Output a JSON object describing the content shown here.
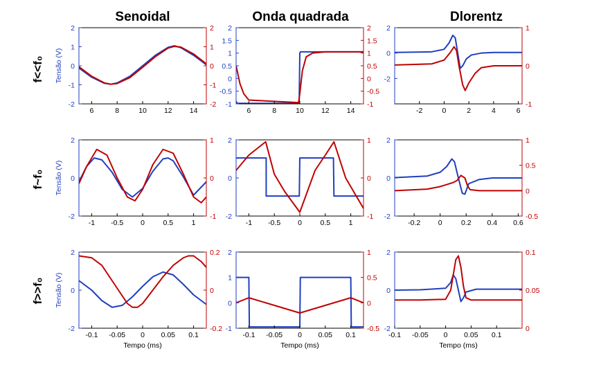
{
  "figure": {
    "columns": [
      "Senoidal",
      "Onda quadrada",
      "Dlorentz"
    ],
    "rows": [
      "f<<f₀",
      "f~f₀",
      "f>>f₀"
    ],
    "ylabel_left": "Tensão (V)",
    "xlabel": "Tempo (ms)",
    "colors": {
      "left": "#1f3fbf",
      "right": "#bf0000",
      "frame": "#000000"
    }
  },
  "chart_data": [
    {
      "type": "line",
      "row": 0,
      "col": 0,
      "title": "Senoidal",
      "ylabel": "Tensão (V)",
      "xlabel": "",
      "xlim": [
        5,
        15
      ],
      "ylim_left": [
        -2,
        2
      ],
      "ylim_right": [
        -2,
        2
      ],
      "xticks": [
        6,
        8,
        10,
        12,
        14
      ],
      "yticks_left": [
        -2,
        -1,
        0,
        1,
        2
      ],
      "yticks_right": [
        -2,
        -1,
        0,
        1,
        2
      ],
      "series": [
        {
          "axis": "left",
          "color": "#1f3fbf",
          "x": [
            5,
            6,
            7,
            7.5,
            8,
            9,
            10,
            11,
            12,
            12.5,
            13,
            14,
            15
          ],
          "y": [
            -0.12,
            -0.6,
            -0.92,
            -0.97,
            -0.9,
            -0.55,
            0,
            0.55,
            0.97,
            1.05,
            0.95,
            0.55,
            0.05
          ]
        },
        {
          "axis": "right",
          "color": "#bf0000",
          "x": [
            5,
            6,
            7,
            7.5,
            8,
            9,
            10,
            11,
            12,
            12.5,
            13,
            14,
            15
          ],
          "y": [
            -0.05,
            -0.55,
            -0.9,
            -0.97,
            -0.93,
            -0.62,
            -0.08,
            0.48,
            0.93,
            1.02,
            0.98,
            0.62,
            0.1
          ]
        }
      ]
    },
    {
      "type": "line",
      "row": 0,
      "col": 1,
      "title": "Onda quadrada",
      "ylabel": "",
      "xlabel": "",
      "xlim": [
        5,
        15
      ],
      "ylim_left": [
        -1,
        2
      ],
      "ylim_right": [
        -1,
        2
      ],
      "xticks": [
        6,
        8,
        10,
        12,
        14
      ],
      "yticks_left": [
        -1,
        -0.5,
        0,
        0.5,
        1,
        1.5,
        2
      ],
      "yticks_right": [
        -1,
        -0.5,
        0,
        0.5,
        1,
        1.5,
        2
      ],
      "series": [
        {
          "axis": "left",
          "color": "#1f3fbf",
          "x": [
            5,
            5.05,
            5.1,
            9.95,
            10,
            10.05,
            10.3,
            15
          ],
          "y": [
            -0.9,
            -0.95,
            -0.98,
            -0.98,
            1.0,
            1.05,
            1.05,
            1.05
          ]
        },
        {
          "axis": "right",
          "color": "#bf0000",
          "x": [
            5,
            5.3,
            5.6,
            6,
            9.9,
            10,
            10.2,
            10.5,
            11,
            12,
            15
          ],
          "y": [
            0.5,
            -0.2,
            -0.6,
            -0.85,
            -0.95,
            -0.6,
            0.3,
            0.85,
            1.0,
            1.05,
            1.05
          ]
        }
      ]
    },
    {
      "type": "line",
      "row": 0,
      "col": 2,
      "title": "Dlorentz",
      "ylabel": "",
      "xlabel": "",
      "xlim": [
        -4,
        6.3
      ],
      "ylim_left": [
        -4,
        2
      ],
      "ylim_right": [
        -1,
        1
      ],
      "xticks": [
        -2,
        0,
        2,
        4,
        6
      ],
      "yticks_left": [
        -2,
        0,
        2
      ],
      "yticks_right": [
        -1,
        0,
        1
      ],
      "series": [
        {
          "axis": "left",
          "color": "#1f3fbf",
          "x": [
            -4,
            -1,
            0,
            0.4,
            0.7,
            0.9,
            1.1,
            1.3,
            1.5,
            1.8,
            2.2,
            3,
            4,
            6.3
          ],
          "y": [
            0.05,
            0.1,
            0.3,
            0.8,
            1.4,
            1.2,
            0.0,
            -1.2,
            -1.0,
            -0.45,
            -0.15,
            0,
            0.05,
            0.05
          ]
        },
        {
          "axis": "right",
          "color": "#bf0000",
          "x": [
            -4,
            -1,
            0,
            0.5,
            0.8,
            1.0,
            1.2,
            1.5,
            1.7,
            2.0,
            2.5,
            3,
            4,
            6.3
          ],
          "y": [
            0.02,
            0.05,
            0.15,
            0.35,
            0.5,
            0.4,
            0.0,
            -0.5,
            -0.65,
            -0.45,
            -0.2,
            -0.05,
            0,
            0
          ]
        }
      ]
    },
    {
      "type": "line",
      "row": 1,
      "col": 0,
      "title": "",
      "ylabel": "Tensão (V)",
      "xlabel": "",
      "xlim": [
        -1.25,
        1.25
      ],
      "ylim_left": [
        -2,
        2
      ],
      "ylim_right": [
        -1,
        1
      ],
      "xticks": [
        -1,
        -0.5,
        0,
        0.5,
        1
      ],
      "yticks_left": [
        -2,
        0,
        2
      ],
      "yticks_right": [
        -1,
        0,
        1
      ],
      "series": [
        {
          "axis": "left",
          "color": "#1f3fbf",
          "x": [
            -1.25,
            -1.1,
            -0.95,
            -0.8,
            -0.6,
            -0.4,
            -0.2,
            0,
            0.2,
            0.4,
            0.5,
            0.6,
            0.8,
            1.0,
            1.25
          ],
          "y": [
            -0.2,
            0.6,
            1.05,
            0.95,
            0.3,
            -0.6,
            -1.0,
            -0.55,
            0.35,
            1.0,
            1.05,
            0.9,
            0.05,
            -0.9,
            -0.2
          ]
        },
        {
          "axis": "right",
          "color": "#bf0000",
          "x": [
            -1.25,
            -1.1,
            -0.9,
            -0.7,
            -0.5,
            -0.3,
            -0.15,
            0,
            0.2,
            0.4,
            0.6,
            0.8,
            1.0,
            1.15,
            1.25
          ],
          "y": [
            -0.15,
            0.3,
            0.75,
            0.6,
            0.0,
            -0.5,
            -0.6,
            -0.3,
            0.35,
            0.75,
            0.65,
            0.1,
            -0.5,
            -0.65,
            -0.5
          ]
        }
      ]
    },
    {
      "type": "line",
      "row": 1,
      "col": 1,
      "title": "",
      "ylabel": "",
      "xlabel": "",
      "xlim": [
        -1.25,
        1.25
      ],
      "ylim_left": [
        -2,
        2
      ],
      "ylim_right": [
        -1,
        1
      ],
      "xticks": [
        -1,
        -0.5,
        0,
        0.5,
        1
      ],
      "yticks_left": [
        -2,
        0,
        2
      ],
      "yticks_right": [
        -1,
        0,
        1
      ],
      "series": [
        {
          "axis": "left",
          "color": "#1f3fbf",
          "x": [
            -1.25,
            -0.66,
            -0.66,
            -0.01,
            0,
            0.66,
            0.67,
            1.25
          ],
          "y": [
            1.05,
            1.05,
            -0.95,
            -0.95,
            1.05,
            1.05,
            -0.95,
            -0.95
          ]
        },
        {
          "axis": "right",
          "color": "#bf0000",
          "x": [
            -1.25,
            -1.0,
            -0.67,
            -0.5,
            -0.3,
            0,
            0.3,
            0.5,
            0.67,
            0.9,
            1.25
          ],
          "y": [
            0.2,
            0.6,
            0.95,
            0.1,
            -0.35,
            -0.9,
            0.2,
            0.6,
            0.95,
            0.0,
            -0.8
          ]
        }
      ]
    },
    {
      "type": "line",
      "row": 1,
      "col": 2,
      "title": "",
      "ylabel": "",
      "xlabel": "",
      "xlim": [
        -0.35,
        0.63
      ],
      "ylim_left": [
        -2,
        2
      ],
      "ylim_right": [
        -0.5,
        1
      ],
      "xticks": [
        -0.2,
        0,
        0.2,
        0.4,
        0.6
      ],
      "yticks_left": [
        -2,
        0,
        2
      ],
      "yticks_right": [
        -0.5,
        0,
        0.5,
        1
      ],
      "series": [
        {
          "axis": "left",
          "color": "#1f3fbf",
          "x": [
            -0.35,
            -0.1,
            0,
            0.05,
            0.09,
            0.11,
            0.14,
            0.17,
            0.19,
            0.22,
            0.3,
            0.4,
            0.63
          ],
          "y": [
            0.02,
            0.1,
            0.3,
            0.6,
            1.0,
            0.85,
            0.0,
            -0.8,
            -0.85,
            -0.3,
            -0.08,
            0,
            0
          ]
        },
        {
          "axis": "right",
          "color": "#bf0000",
          "x": [
            -0.35,
            -0.1,
            0,
            0.05,
            0.1,
            0.13,
            0.16,
            0.19,
            0.21,
            0.23,
            0.3,
            0.4,
            0.63
          ],
          "y": [
            0,
            0.03,
            0.08,
            0.12,
            0.16,
            0.2,
            0.3,
            0.25,
            0.1,
            0.02,
            0,
            0,
            0
          ]
        }
      ]
    },
    {
      "type": "line",
      "row": 2,
      "col": 0,
      "title": "",
      "ylabel": "Tensão (V)",
      "xlabel": "Tempo (ms)",
      "xlim": [
        -0.125,
        0.125
      ],
      "ylim_left": [
        -2,
        2
      ],
      "ylim_right": [
        -0.2,
        0.2
      ],
      "xticks": [
        -0.1,
        -0.05,
        0,
        0.05,
        0.1
      ],
      "yticks_left": [
        -2,
        0,
        2
      ],
      "yticks_right": [
        -0.2,
        0,
        0.2
      ],
      "series": [
        {
          "axis": "left",
          "color": "#1f3fbf",
          "x": [
            -0.125,
            -0.1,
            -0.08,
            -0.06,
            -0.04,
            -0.02,
            0,
            0.02,
            0.04,
            0.06,
            0.08,
            0.1,
            0.125
          ],
          "y": [
            0.5,
            0.0,
            -0.55,
            -0.9,
            -0.8,
            -0.35,
            0.2,
            0.7,
            0.95,
            0.8,
            0.3,
            -0.25,
            -0.75
          ]
        },
        {
          "axis": "right",
          "color": "#bf0000",
          "x": [
            -0.125,
            -0.1,
            -0.08,
            -0.06,
            -0.04,
            -0.03,
            -0.02,
            -0.01,
            0,
            0.02,
            0.04,
            0.06,
            0.08,
            0.09,
            0.1,
            0.115,
            0.125
          ],
          "y": [
            0.18,
            0.17,
            0.13,
            0.05,
            -0.03,
            -0.07,
            -0.09,
            -0.09,
            -0.07,
            0.0,
            0.07,
            0.13,
            0.17,
            0.18,
            0.18,
            0.15,
            0.12
          ]
        }
      ]
    },
    {
      "type": "line",
      "row": 2,
      "col": 1,
      "title": "",
      "ylabel": "",
      "xlabel": "Tempo (ms)",
      "xlim": [
        -0.125,
        0.125
      ],
      "ylim_left": [
        -1,
        2
      ],
      "ylim_right": [
        -0.5,
        1
      ],
      "xticks": [
        -0.1,
        -0.05,
        0,
        0.05,
        0.1
      ],
      "yticks_left": [
        -1,
        0,
        1,
        2
      ],
      "yticks_right": [
        -0.5,
        0,
        0.5,
        1
      ],
      "series": [
        {
          "axis": "left",
          "color": "#1f3fbf",
          "x": [
            -0.125,
            -0.1,
            -0.099,
            0,
            0.001,
            0.1,
            0.101,
            0.125
          ],
          "y": [
            1.0,
            1.0,
            -0.95,
            -0.95,
            1.0,
            1.0,
            -0.95,
            -0.95
          ]
        },
        {
          "axis": "right",
          "color": "#bf0000",
          "x": [
            -0.125,
            -0.1,
            -0.05,
            0,
            0.05,
            0.1,
            0.125
          ],
          "y": [
            0.0,
            0.1,
            -0.05,
            -0.2,
            -0.05,
            0.1,
            0.0
          ]
        }
      ]
    },
    {
      "type": "line",
      "row": 2,
      "col": 2,
      "title": "",
      "ylabel": "",
      "xlabel": "Tempo (ms)",
      "xlim": [
        -0.1,
        0.15
      ],
      "ylim_left": [
        -2,
        2
      ],
      "ylim_right": [
        0,
        0.1
      ],
      "xticks": [
        -0.1,
        -0.05,
        0,
        0.05,
        0.1
      ],
      "yticks_left": [
        -2,
        0,
        2
      ],
      "yticks_right": [
        0,
        0.05,
        0.1
      ],
      "series": [
        {
          "axis": "left",
          "color": "#1f3fbf",
          "x": [
            -0.1,
            -0.05,
            0,
            0.01,
            0.015,
            0.02,
            0.025,
            0.03,
            0.035,
            0.04,
            0.06,
            0.1,
            0.15
          ],
          "y": [
            0.0,
            0.02,
            0.1,
            0.4,
            0.8,
            0.6,
            0.0,
            -0.6,
            -0.4,
            -0.1,
            0.05,
            0.05,
            0.05
          ]
        },
        {
          "axis": "right",
          "color": "#bf0000",
          "x": [
            -0.1,
            -0.05,
            0,
            0.01,
            0.015,
            0.02,
            0.025,
            0.03,
            0.035,
            0.04,
            0.05,
            0.1,
            0.15
          ],
          "y": [
            0.037,
            0.037,
            0.038,
            0.05,
            0.07,
            0.09,
            0.095,
            0.08,
            0.055,
            0.04,
            0.037,
            0.037,
            0.037
          ]
        }
      ]
    }
  ]
}
